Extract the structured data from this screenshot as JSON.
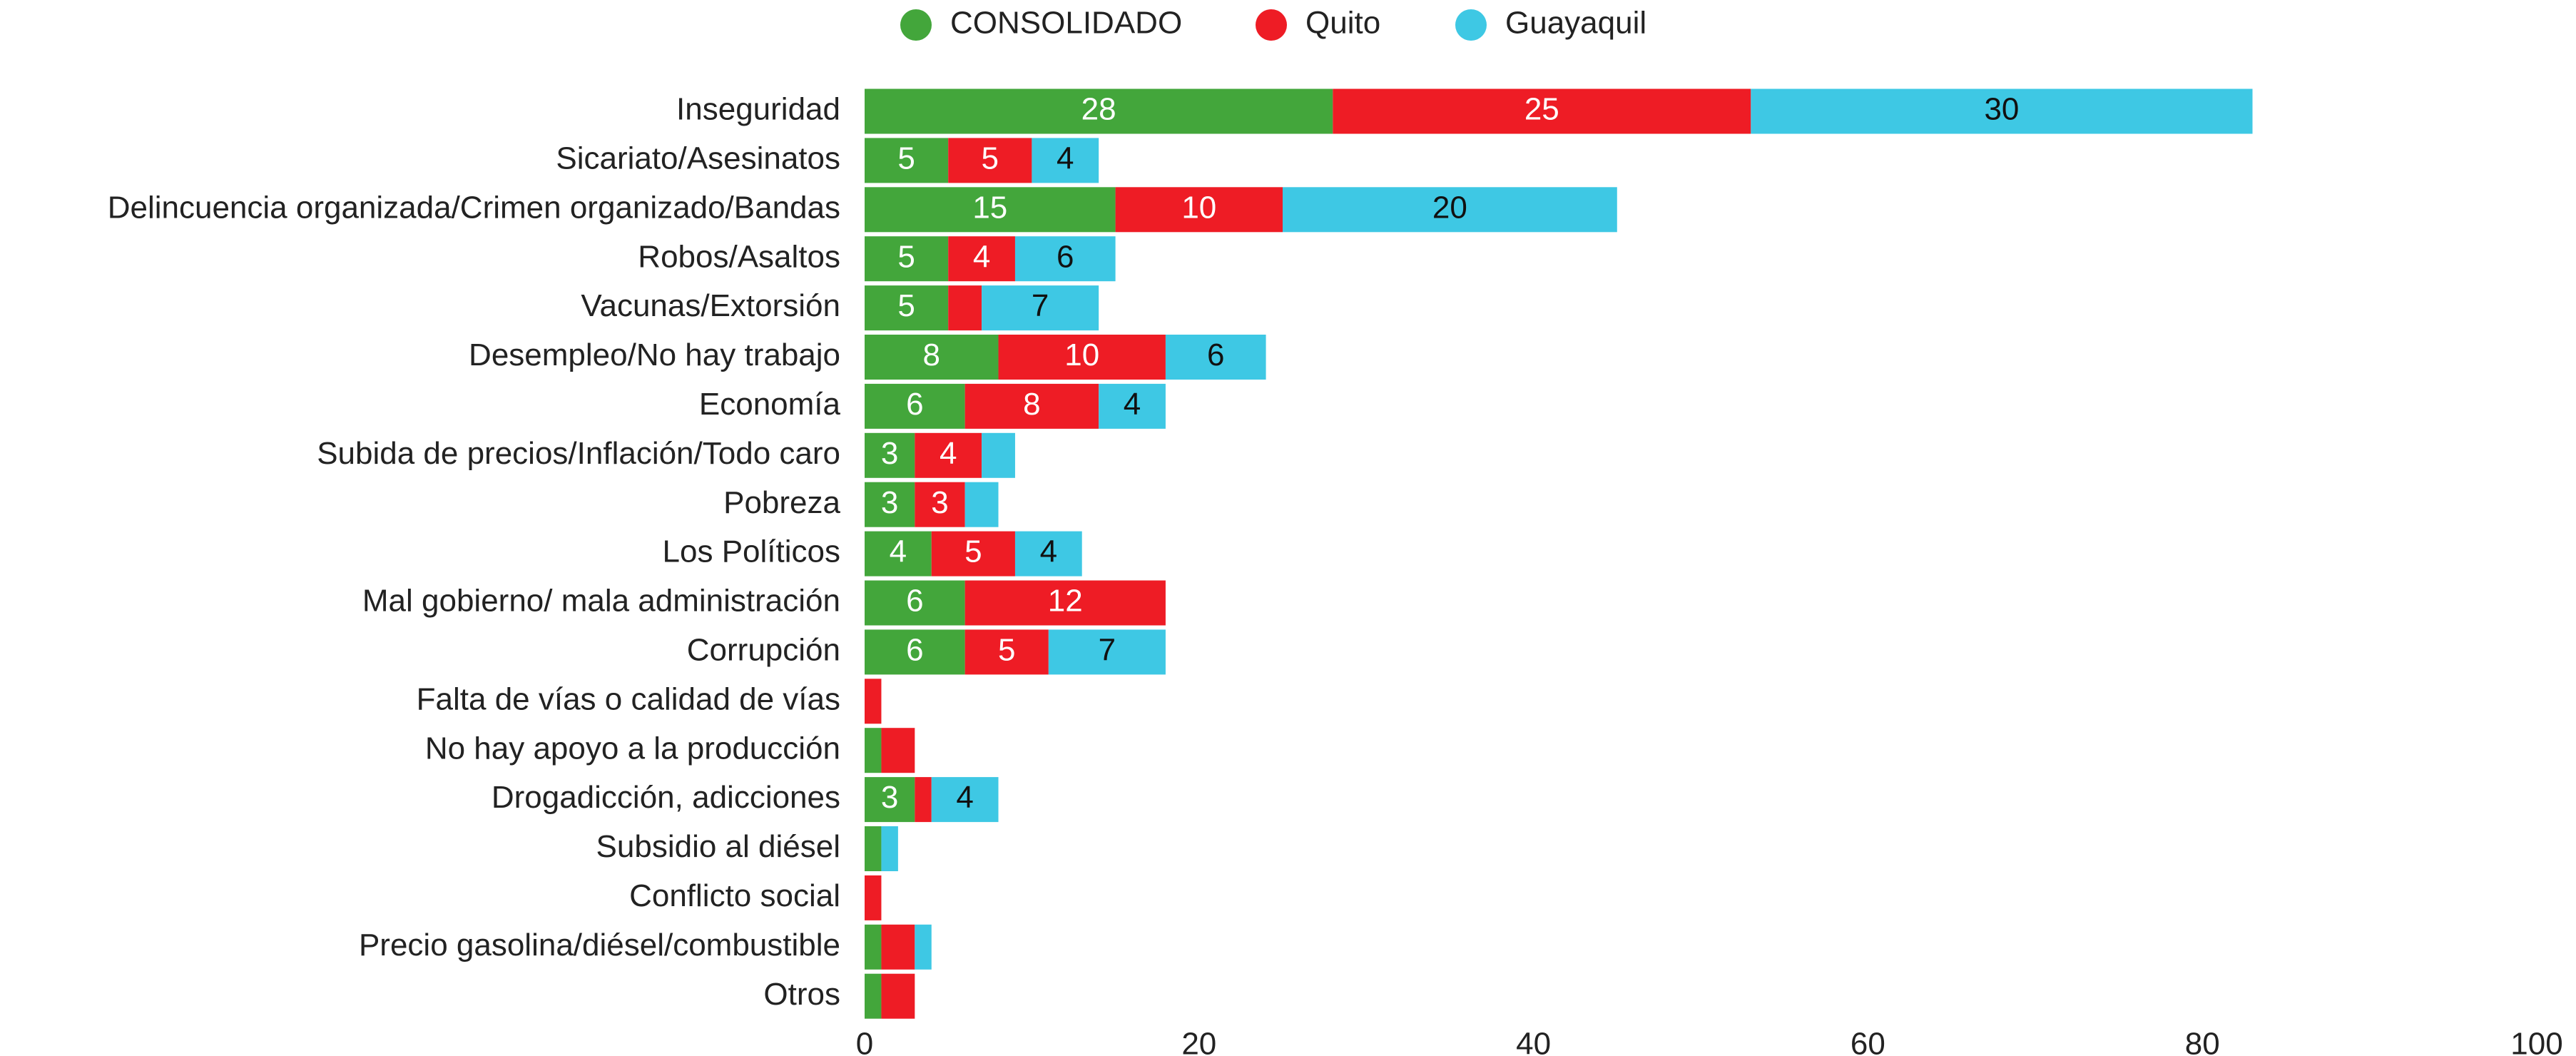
{
  "chart_data": {
    "type": "stacked-barh",
    "categories": [
      "Inseguridad",
      "Sicariato/Asesinatos",
      "Delincuencia organizada/Crimen organizado/Bandas",
      "Robos/Asaltos",
      "Vacunas/Extorsión",
      "Desempleo/No hay trabajo",
      "Economía",
      "Subida de precios/Inflación/Todo caro",
      "Pobreza",
      "Los Políticos",
      "Mal gobierno/ mala administración",
      "Corrupción",
      "Falta de vías o calidad de vías",
      "No hay apoyo a la producción",
      "Drogadicción, adicciones",
      "Subsidio al diésel",
      "Conflicto social",
      "Precio gasolina/diésel/combustible",
      "Otros"
    ],
    "series": [
      {
        "name": "CONSOLIDADO",
        "color": "#43a63b",
        "values": [
          28,
          5,
          15,
          5,
          5,
          8,
          6,
          3,
          3,
          4,
          6,
          6,
          0,
          1,
          3,
          1,
          0,
          1,
          1
        ]
      },
      {
        "name": "Quito",
        "color": "#ee1c25",
        "values": [
          25,
          5,
          10,
          4,
          2,
          10,
          8,
          4,
          3,
          5,
          12,
          5,
          1,
          2,
          1,
          0,
          1,
          2,
          2
        ]
      },
      {
        "name": "Guayaquil",
        "color": "#3ec8e4",
        "values": [
          30,
          4,
          20,
          6,
          7,
          6,
          4,
          2,
          2,
          4,
          0,
          7,
          0,
          0,
          4,
          1,
          0,
          1,
          0
        ]
      }
    ],
    "xlim": [
      0,
      100
    ],
    "xticks": [
      0,
      20,
      40,
      60,
      80,
      100
    ],
    "legend": "top"
  }
}
